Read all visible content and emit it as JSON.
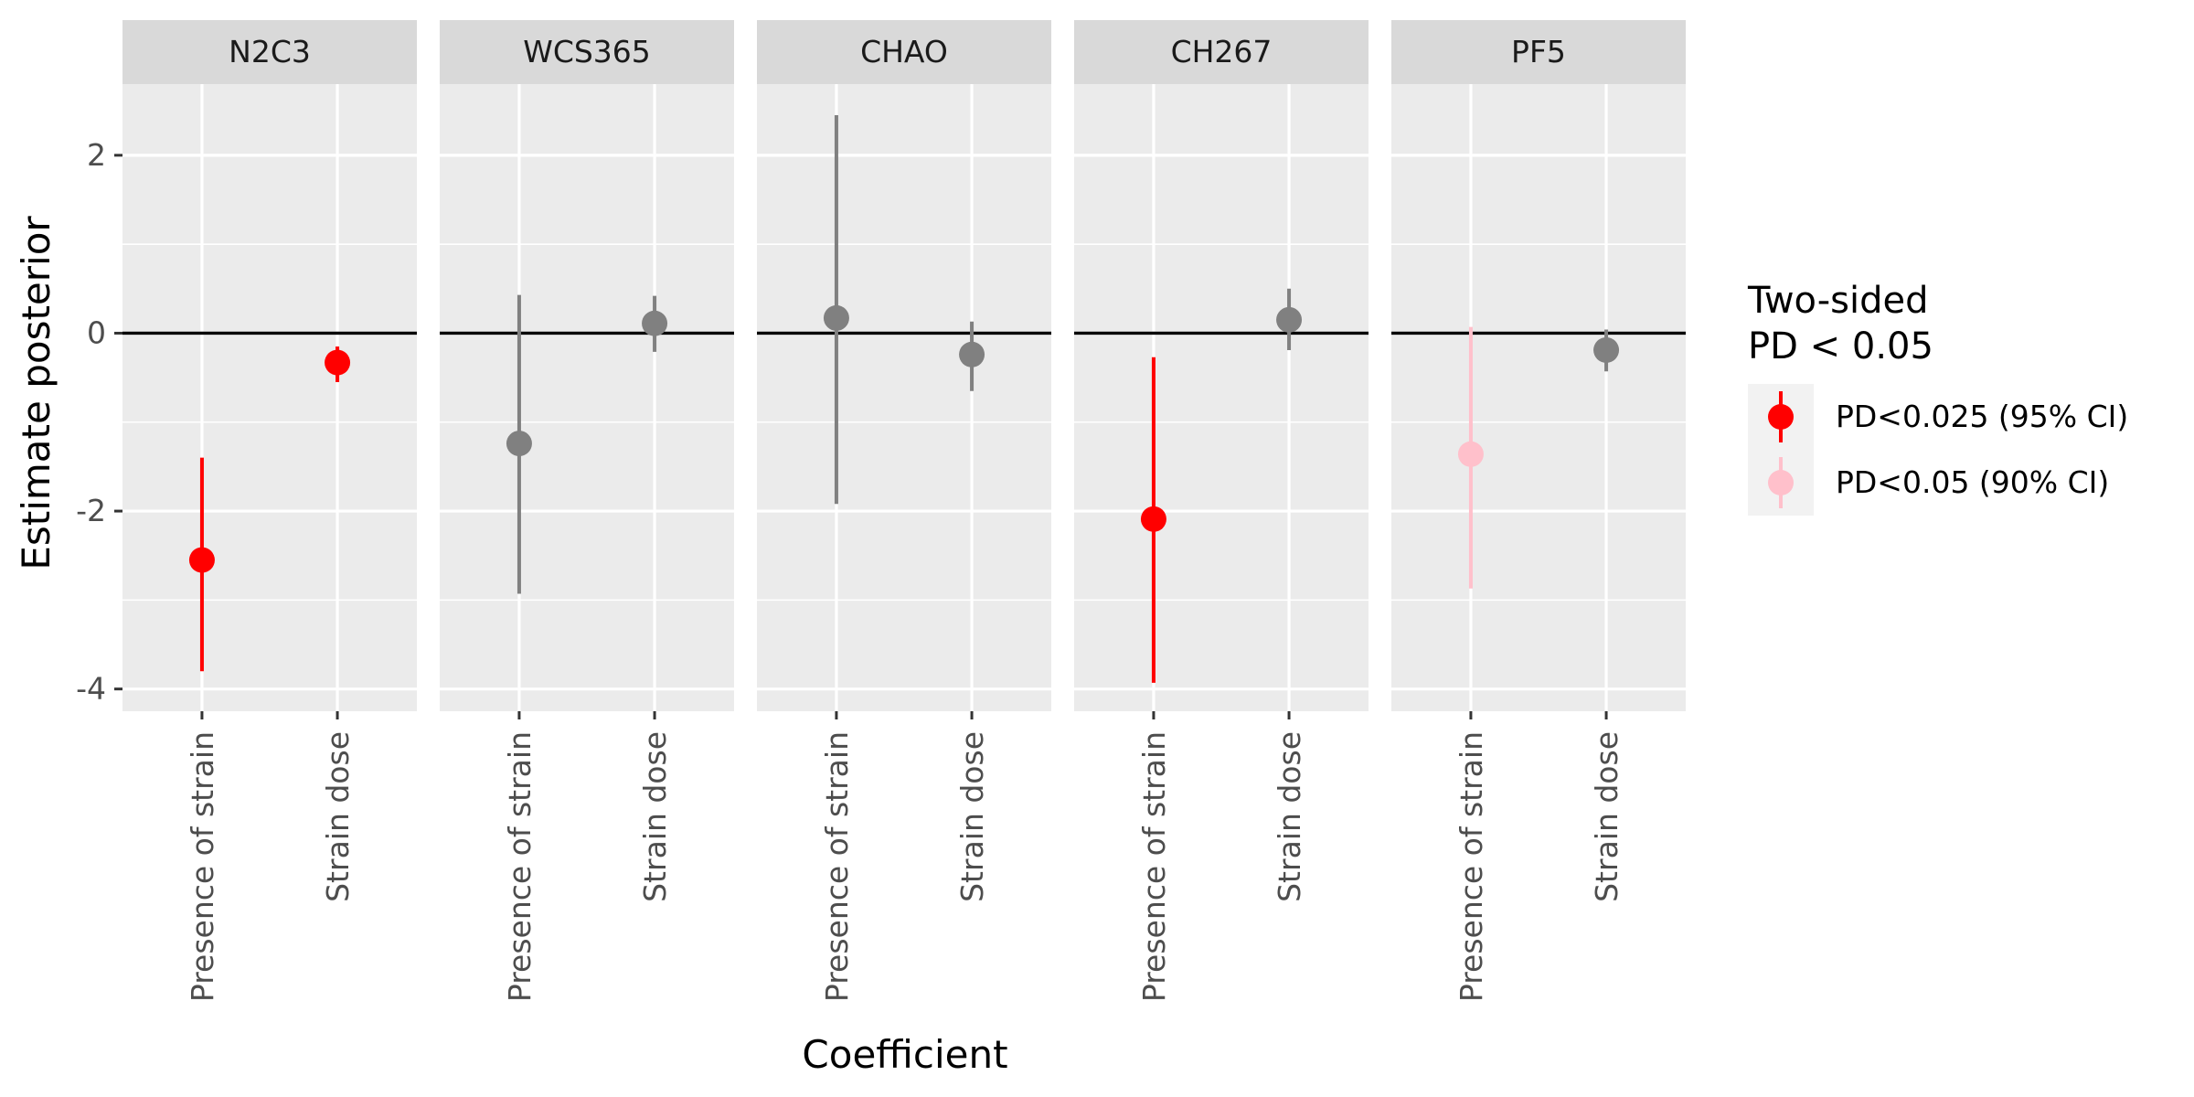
{
  "chart_data": {
    "type": "pointrange",
    "xlabel": "Coefficient",
    "ylabel": "Estimate posterior",
    "ylim": [
      -4.25,
      2.8
    ],
    "yticks": [
      -4,
      -2,
      0,
      2
    ],
    "hline": 0,
    "grid": true,
    "categories": [
      "Presence of strain",
      "Strain dose"
    ],
    "legend": {
      "title_lines": [
        "Two-sided",
        "PD < 0.05"
      ],
      "position": "right",
      "entries": [
        {
          "key": "sig95",
          "label": "PD<0.025 (95% CI)",
          "color": "#FF0000"
        },
        {
          "key": "sig90",
          "label": "PD<0.05 (90% CI)",
          "color": "#FFC0CB"
        }
      ]
    },
    "colors": {
      "sig95": "#FF0000",
      "sig90": "#FFC0CB",
      "none": "#808080"
    },
    "panels": [
      {
        "name": "N2C3",
        "points": [
          {
            "category": "Presence of strain",
            "estimate": -2.55,
            "lower": -3.8,
            "upper": -1.4,
            "group": "sig95"
          },
          {
            "category": "Strain dose",
            "estimate": -0.33,
            "lower": -0.55,
            "upper": -0.15,
            "group": "sig95"
          }
        ]
      },
      {
        "name": "WCS365",
        "points": [
          {
            "category": "Presence of strain",
            "estimate": -1.24,
            "lower": -2.93,
            "upper": 0.43,
            "group": "none"
          },
          {
            "category": "Strain dose",
            "estimate": 0.11,
            "lower": -0.21,
            "upper": 0.42,
            "group": "none"
          }
        ]
      },
      {
        "name": "CHAO",
        "points": [
          {
            "category": "Presence of strain",
            "estimate": 0.17,
            "lower": -1.92,
            "upper": 2.45,
            "group": "none"
          },
          {
            "category": "Strain dose",
            "estimate": -0.24,
            "lower": -0.65,
            "upper": 0.13,
            "group": "none"
          }
        ]
      },
      {
        "name": "CH267",
        "points": [
          {
            "category": "Presence of strain",
            "estimate": -2.09,
            "lower": -3.93,
            "upper": -0.27,
            "group": "sig95"
          },
          {
            "category": "Strain dose",
            "estimate": 0.15,
            "lower": -0.19,
            "upper": 0.5,
            "group": "none"
          }
        ]
      },
      {
        "name": "PF5",
        "points": [
          {
            "category": "Presence of strain",
            "estimate": -1.36,
            "lower": -2.87,
            "upper": 0.07,
            "group": "sig90"
          },
          {
            "category": "Strain dose",
            "estimate": -0.19,
            "lower": -0.43,
            "upper": 0.04,
            "group": "none"
          }
        ]
      }
    ]
  }
}
